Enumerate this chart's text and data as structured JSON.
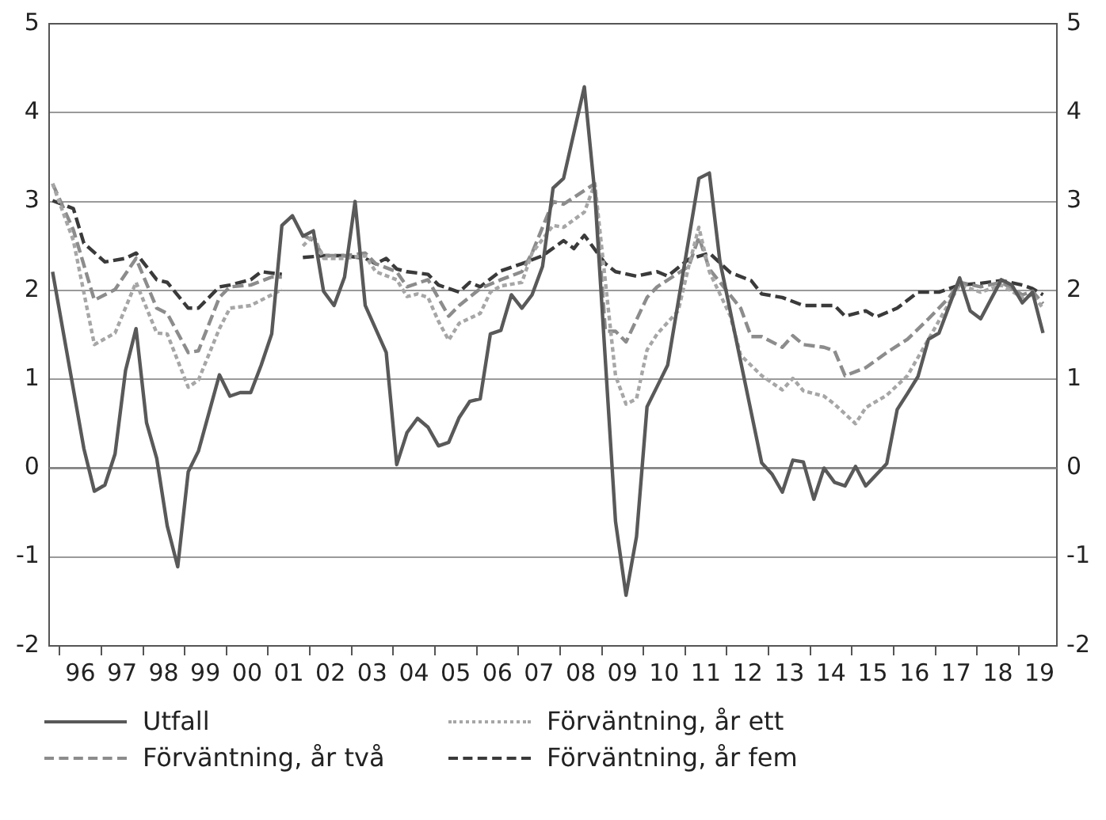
{
  "chart_data": {
    "type": "line",
    "xlim": [
      "1995-10",
      "2019-12"
    ],
    "xticks": [
      {
        "value": "1996-01",
        "label": null
      },
      {
        "value": "1996-07",
        "label": "96"
      },
      {
        "value": "1997-01",
        "label": null
      },
      {
        "value": "1997-07",
        "label": "97"
      },
      {
        "value": "1998-01",
        "label": null
      },
      {
        "value": "1998-07",
        "label": "98"
      },
      {
        "value": "1999-01",
        "label": null
      },
      {
        "value": "1999-07",
        "label": "99"
      },
      {
        "value": "2000-01",
        "label": null
      },
      {
        "value": "2000-07",
        "label": "00"
      },
      {
        "value": "2001-01",
        "label": null
      },
      {
        "value": "2001-07",
        "label": "01"
      },
      {
        "value": "2002-01",
        "label": null
      },
      {
        "value": "2002-07",
        "label": "02"
      },
      {
        "value": "2003-01",
        "label": null
      },
      {
        "value": "2003-07",
        "label": "03"
      },
      {
        "value": "2004-01",
        "label": null
      },
      {
        "value": "2004-07",
        "label": "04"
      },
      {
        "value": "2005-01",
        "label": null
      },
      {
        "value": "2005-07",
        "label": "05"
      },
      {
        "value": "2006-01",
        "label": null
      },
      {
        "value": "2006-07",
        "label": "06"
      },
      {
        "value": "2007-01",
        "label": null
      },
      {
        "value": "2007-07",
        "label": "07"
      },
      {
        "value": "2008-01",
        "label": null
      },
      {
        "value": "2008-07",
        "label": "08"
      },
      {
        "value": "2009-01",
        "label": null
      },
      {
        "value": "2009-07",
        "label": "09"
      },
      {
        "value": "2010-01",
        "label": null
      },
      {
        "value": "2010-07",
        "label": "10"
      },
      {
        "value": "2011-01",
        "label": null
      },
      {
        "value": "2011-07",
        "label": "11"
      },
      {
        "value": "2012-01",
        "label": null
      },
      {
        "value": "2012-07",
        "label": "12"
      },
      {
        "value": "2013-01",
        "label": null
      },
      {
        "value": "2013-07",
        "label": "13"
      },
      {
        "value": "2014-01",
        "label": null
      },
      {
        "value": "2014-07",
        "label": "14"
      },
      {
        "value": "2015-01",
        "label": null
      },
      {
        "value": "2015-07",
        "label": "15"
      },
      {
        "value": "2016-01",
        "label": null
      },
      {
        "value": "2016-07",
        "label": "16"
      },
      {
        "value": "2017-01",
        "label": null
      },
      {
        "value": "2017-07",
        "label": "17"
      },
      {
        "value": "2018-01",
        "label": null
      },
      {
        "value": "2018-07",
        "label": "18"
      },
      {
        "value": "2019-01",
        "label": null
      },
      {
        "value": "2019-07",
        "label": "19"
      }
    ],
    "ylim": [
      -2,
      5
    ],
    "yticks": [
      -2,
      -1,
      0,
      1,
      2,
      3,
      4,
      5
    ],
    "y2lim": [
      -2,
      5
    ],
    "y2ticks": [
      -2,
      -1,
      0,
      1,
      2,
      3,
      4,
      5
    ],
    "grid": "y",
    "legend": "bottom",
    "marker": "none",
    "ref_lines": [
      {
        "axis": "y",
        "value": 0,
        "label": null,
        "color": "#7f7f7f",
        "line_style": "solid"
      }
    ],
    "series": [
      {
        "name": "Utfall",
        "color": "#595959",
        "line_style": "solid",
        "x": [
          "1995-11",
          "1996-08",
          "1996-11",
          "1997-02",
          "1997-05",
          "1997-08",
          "1997-11",
          "1998-02",
          "1998-05",
          "1998-08",
          "1998-11",
          "1999-02",
          "1999-05",
          "1999-11",
          "2000-02",
          "2000-05",
          "2000-08",
          "2000-11",
          "2001-02",
          "2001-05",
          "2001-08",
          "2001-11",
          "2002-02",
          "2002-05",
          "2002-08",
          "2002-11",
          "2003-02",
          "2003-05",
          "2003-11",
          "2004-02",
          "2004-05",
          "2004-08",
          "2004-11",
          "2005-02",
          "2005-05",
          "2005-08",
          "2005-11",
          "2006-02",
          "2006-05",
          "2006-08",
          "2006-11",
          "2007-02",
          "2007-05",
          "2007-08",
          "2007-11",
          "2008-02",
          "2008-08",
          "2008-11",
          "2009-05",
          "2009-08",
          "2009-11",
          "2010-02",
          "2010-05",
          "2010-08",
          "2011-05",
          "2011-08",
          "2011-11",
          "2012-11",
          "2013-02",
          "2013-05",
          "2013-08",
          "2013-11",
          "2014-02",
          "2014-05",
          "2014-08",
          "2014-11",
          "2015-02",
          "2015-05",
          "2015-11",
          "2016-02",
          "2016-05",
          "2016-08",
          "2016-11",
          "2017-02",
          "2017-08",
          "2017-11",
          "2018-02",
          "2018-08",
          "2018-11",
          "2019-02",
          "2019-05",
          "2019-08"
        ],
        "values": [
          2.21,
          0.22,
          -0.26,
          -0.19,
          0.16,
          1.1,
          1.57,
          0.51,
          0.11,
          -0.65,
          -1.11,
          -0.04,
          0.19,
          1.05,
          0.81,
          0.85,
          0.85,
          1.16,
          1.51,
          2.73,
          2.84,
          2.61,
          2.67,
          1.99,
          1.83,
          2.15,
          3.0,
          1.83,
          1.3,
          0.04,
          0.4,
          0.56,
          0.46,
          0.25,
          0.29,
          0.57,
          0.75,
          0.78,
          1.51,
          1.55,
          1.95,
          1.8,
          1.95,
          2.27,
          3.15,
          3.26,
          4.29,
          3.09,
          -0.6,
          -1.43,
          -0.77,
          0.69,
          0.92,
          1.16,
          3.26,
          3.32,
          2.33,
          0.06,
          -0.07,
          -0.27,
          0.09,
          0.07,
          -0.35,
          0.0,
          -0.16,
          -0.2,
          0.02,
          -0.2,
          0.05,
          0.66,
          0.84,
          1.03,
          1.45,
          1.52,
          2.14,
          1.77,
          1.68,
          2.12,
          2.06,
          1.86,
          1.98,
          1.52
        ]
      },
      {
        "name": "Förväntning, år ett",
        "color": "#a6a6a6",
        "line_style": "dotted",
        "x": [
          "1995-11",
          "1996-05",
          "1996-11",
          "1997-05",
          "1997-11",
          "1998-05",
          "1998-08",
          "1999-02",
          "1999-05",
          "1999-11",
          "2000-02",
          "2000-08",
          "2001-02",
          "2001-05",
          "2001-08",
          "2001-11",
          "2002-02",
          "2002-05",
          "2002-11",
          "2003-05",
          "2003-08",
          "2004-02",
          "2004-05",
          "2004-08",
          "2004-11",
          "2005-02",
          "2005-05",
          "2005-08",
          "2006-02",
          "2006-05",
          "2006-08",
          "2007-02",
          "2007-05",
          "2007-11",
          "2008-02",
          "2008-08",
          "2008-11",
          "2009-05",
          "2009-08",
          "2009-11",
          "2010-02",
          "2010-05",
          "2010-11",
          "2011-02",
          "2011-05",
          "2011-08",
          "2012-02",
          "2012-05",
          "2012-11",
          "2013-05",
          "2013-08",
          "2013-11",
          "2014-05",
          "2014-08",
          "2015-02",
          "2015-05",
          "2015-11",
          "2016-05",
          "2016-11",
          "2017-05",
          "2017-08",
          "2018-02",
          "2018-08",
          "2019-02",
          "2019-05",
          "2019-08"
        ],
        "values": [
          3.2,
          2.56,
          1.39,
          1.52,
          2.09,
          1.52,
          1.51,
          0.91,
          0.99,
          1.57,
          1.8,
          1.83,
          1.95,
          2.01,
          null,
          2.5,
          2.62,
          2.36,
          2.36,
          2.39,
          2.21,
          2.12,
          1.93,
          1.96,
          1.92,
          1.65,
          1.44,
          1.63,
          1.74,
          1.98,
          2.05,
          2.09,
          2.42,
          2.73,
          2.71,
          2.88,
          3.2,
          1.04,
          0.72,
          0.78,
          1.33,
          1.51,
          1.77,
          2.27,
          2.71,
          2.21,
          1.71,
          1.27,
          1.04,
          0.88,
          1.01,
          0.87,
          0.81,
          0.72,
          0.5,
          0.68,
          0.82,
          1.04,
          1.45,
          1.86,
          2.06,
          1.98,
          2.06,
          1.92,
          1.95,
          1.8
        ]
      },
      {
        "name": "Förväntning, år två",
        "color": "#8c8c8c",
        "line_style": "dashed",
        "x": [
          "1995-11",
          "1996-05",
          "1996-11",
          "1997-05",
          "1997-11",
          "1998-05",
          "1998-08",
          "1999-02",
          "1999-05",
          "1999-11",
          "2000-02",
          "2000-08",
          "2001-02",
          "2001-05",
          "2001-08",
          "2001-11",
          "2002-02",
          "2002-05",
          "2002-11",
          "2003-05",
          "2003-08",
          "2004-02",
          "2004-05",
          "2004-11",
          "2005-05",
          "2005-08",
          "2006-02",
          "2006-08",
          "2007-02",
          "2007-05",
          "2007-11",
          "2008-02",
          "2008-11",
          "2009-02",
          "2009-05",
          "2009-08",
          "2010-02",
          "2010-05",
          "2011-02",
          "2011-05",
          "2011-08",
          "2012-05",
          "2012-08",
          "2012-11",
          "2013-05",
          "2013-08",
          "2013-11",
          "2014-05",
          "2014-08",
          "2014-11",
          "2015-05",
          "2015-11",
          "2016-05",
          "2016-11",
          "2017-05",
          "2017-08",
          "2018-02",
          "2018-08",
          "2019-02",
          "2019-05",
          "2019-08"
        ],
        "values": [
          3.2,
          2.68,
          1.89,
          2.01,
          2.36,
          1.8,
          1.74,
          1.3,
          1.32,
          1.92,
          2.04,
          2.06,
          2.15,
          2.15,
          null,
          2.62,
          2.56,
          2.39,
          2.39,
          2.42,
          2.3,
          2.21,
          2.04,
          2.12,
          1.71,
          1.83,
          2.02,
          2.12,
          2.21,
          2.42,
          3.0,
          2.97,
          3.2,
          1.54,
          1.54,
          1.42,
          1.92,
          2.04,
          2.27,
          2.6,
          2.24,
          1.8,
          1.48,
          1.48,
          1.36,
          1.49,
          1.39,
          1.36,
          1.32,
          1.04,
          1.13,
          1.3,
          1.45,
          1.68,
          1.92,
          2.09,
          2.04,
          2.09,
          1.95,
          1.99,
          1.85
        ]
      },
      {
        "name": "Förväntning, år fem",
        "color": "#3a3a3a",
        "line_style": "dashed",
        "x": [
          "1995-11",
          "1996-05",
          "1996-08",
          "1997-02",
          "1997-08",
          "1997-11",
          "1998-05",
          "1998-08",
          "1999-02",
          "1999-05",
          "1999-11",
          "2000-02",
          "2000-08",
          "2000-11",
          "2001-05",
          "2001-08",
          "2001-11",
          "2002-05",
          "2002-11",
          "2003-05",
          "2003-08",
          "2003-11",
          "2004-02",
          "2004-05",
          "2004-11",
          "2005-02",
          "2005-08",
          "2005-11",
          "2006-02",
          "2006-08",
          "2007-02",
          "2007-08",
          "2008-02",
          "2008-05",
          "2008-08",
          "2009-02",
          "2009-05",
          "2009-11",
          "2010-05",
          "2010-08",
          "2011-02",
          "2011-08",
          "2012-02",
          "2012-08",
          "2012-11",
          "2013-05",
          "2013-11",
          "2014-08",
          "2014-11",
          "2015-05",
          "2015-08",
          "2016-02",
          "2016-08",
          "2017-02",
          "2017-08",
          "2018-02",
          "2018-08",
          "2019-02",
          "2019-05",
          "2019-08"
        ],
        "values": [
          3.01,
          2.92,
          2.53,
          2.32,
          2.36,
          2.42,
          2.12,
          2.09,
          1.8,
          1.8,
          2.04,
          2.06,
          2.12,
          2.21,
          2.18,
          null,
          2.37,
          2.39,
          2.39,
          2.36,
          2.3,
          2.36,
          2.24,
          2.21,
          2.18,
          2.06,
          1.98,
          2.09,
          2.04,
          2.22,
          2.3,
          2.39,
          2.56,
          2.47,
          2.62,
          2.3,
          2.21,
          2.16,
          2.21,
          2.16,
          2.35,
          2.42,
          2.2,
          2.11,
          1.96,
          1.92,
          1.83,
          1.83,
          1.71,
          1.77,
          1.7,
          1.8,
          1.98,
          1.98,
          2.06,
          2.08,
          2.11,
          2.06,
          2.02,
          1.95
        ]
      }
    ]
  }
}
